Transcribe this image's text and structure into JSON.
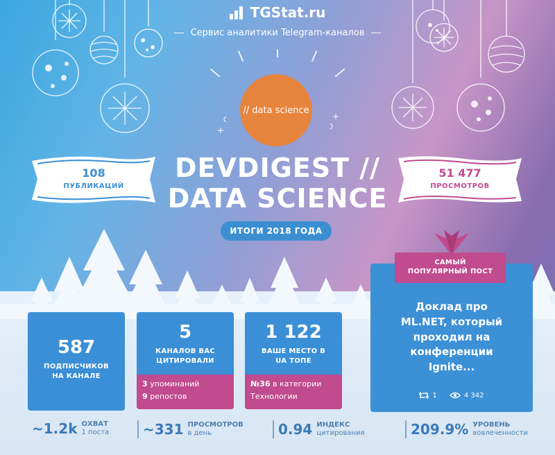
{
  "header": {
    "brand": "TGStat.ru",
    "tagline": "Сервис аналитики Telegram-каналов"
  },
  "channel": {
    "avatar_text": "// data science",
    "title_line1": "DEVDIGEST //",
    "title_line2": "DATA SCIENCE",
    "year_label": "ИТОГИ 2018 ГОДА"
  },
  "ribbons": {
    "publications": {
      "value": "108",
      "label": "ПУБЛИКАЦИЙ"
    },
    "views": {
      "value": "51 477",
      "label": "ПРОСМОТРОВ"
    }
  },
  "cards": {
    "subscribers": {
      "value": "587",
      "label_line1": "ПОДПИСЧИКОВ",
      "label_line2": "НА КАНАЛЕ"
    },
    "citations": {
      "value": "5",
      "label_line1": "КАНАЛОВ ВАС",
      "label_line2": "ЦИТИРОВАЛИ",
      "mentions_num": "3",
      "mentions_label": "упоминаний",
      "reposts_num": "9",
      "reposts_label": "репостов"
    },
    "rank": {
      "value": "1 122",
      "label_line1": "ВАШЕ МЕСТО В",
      "label_line2": "UA ТОПЕ",
      "category_num": "№36",
      "category_label": "в категории",
      "category_name": "Технологии"
    }
  },
  "popular_post": {
    "tag_line1": "САМЫЙ",
    "tag_line2": "ПОПУЛЯРНЫЙ ПОСТ",
    "text_line1": "Доклад про",
    "text_line2": "ML.NET, который",
    "text_line3": "проходил на",
    "text_line4": "конференции",
    "text_line5": "Ignite...",
    "reposts": "1",
    "views": "4 342"
  },
  "stats": {
    "reach": {
      "value": "~1.2k",
      "label1": "ОХВАТ",
      "label2": "1 поста"
    },
    "daily_views": {
      "value": "~331",
      "label1": "ПРОСМОТРОВ",
      "label2": "в день"
    },
    "citation_index": {
      "value": "0.94",
      "label1": "ИНДЕКС",
      "label2": "цитирования"
    },
    "engagement": {
      "value": "209.9%",
      "label1": "УРОВЕНЬ",
      "label2": "вовлеченности"
    }
  },
  "colors": {
    "accent_blue": "#3a8fd6",
    "accent_pink": "#c14b8f",
    "avatar_orange": "#e7853e"
  }
}
